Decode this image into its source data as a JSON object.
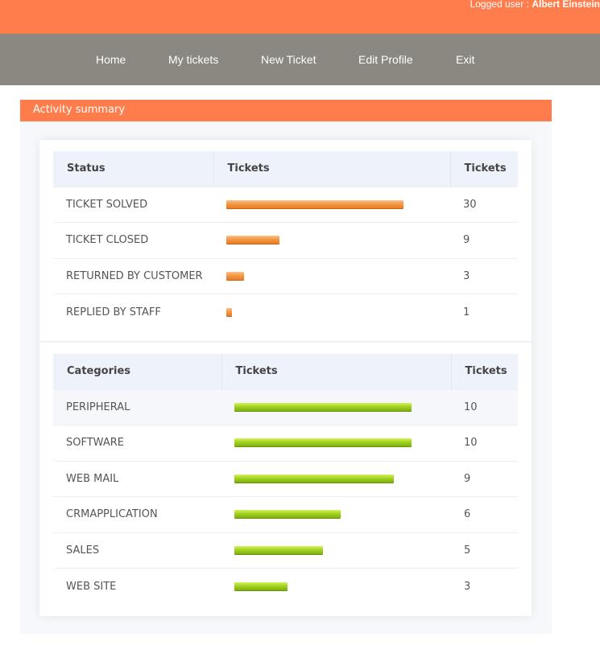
{
  "header": {
    "logged_label": "Logged user :",
    "user_name": "Albert Einstein"
  },
  "nav": {
    "items": [
      "Home",
      "My tickets",
      "New Ticket",
      "Edit Profile",
      "Exit"
    ]
  },
  "section": {
    "title": "Activity summary"
  },
  "status_table": {
    "headers": [
      "Status",
      "Tickets",
      "Tickets"
    ],
    "rows": [
      {
        "label": "TICKET SOLVED",
        "count": "30"
      },
      {
        "label": "TICKET CLOSED",
        "count": "9"
      },
      {
        "label": "RETURNED BY CUSTOMER",
        "count": "3"
      },
      {
        "label": "REPLIED BY STAFF",
        "count": "1"
      }
    ],
    "bar_color": "#f39a45",
    "max_value": 30
  },
  "categories_table": {
    "headers": [
      "Categories",
      "Tickets",
      "Tickets"
    ],
    "rows": [
      {
        "label": "PERIPHERAL",
        "count": "10"
      },
      {
        "label": "SOFTWARE",
        "count": "10"
      },
      {
        "label": "WEB MAIL",
        "count": "9"
      },
      {
        "label": "CRMAPPLICATION",
        "count": "6"
      },
      {
        "label": "SALES",
        "count": "5"
      },
      {
        "label": "WEB SITE",
        "count": "3"
      }
    ],
    "bar_color": "#a3d422",
    "max_value": 10
  }
}
